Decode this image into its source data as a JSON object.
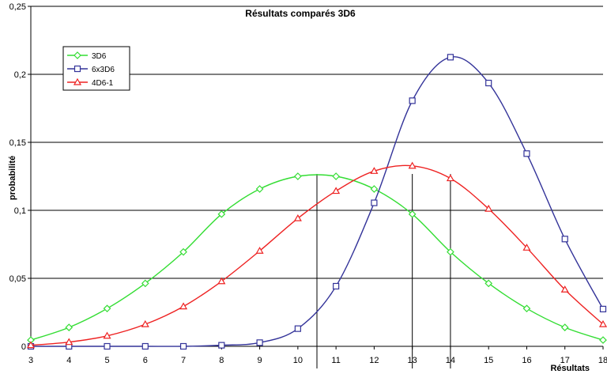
{
  "chart_data": {
    "type": "line",
    "title": "Résultats comparés 3D6",
    "xlabel": "Résultats",
    "ylabel": "probabilité",
    "x": [
      3,
      4,
      5,
      6,
      7,
      8,
      9,
      10,
      11,
      12,
      13,
      14,
      15,
      16,
      17,
      18
    ],
    "xticks": [
      "3",
      "4",
      "5",
      "6",
      "7",
      "8",
      "9",
      "10",
      "11",
      "12",
      "13",
      "14",
      "15",
      "16",
      "17",
      "18"
    ],
    "xlim": [
      3,
      18
    ],
    "ylim": [
      0,
      0.25
    ],
    "yticks": [
      0,
      0.05,
      0.1,
      0.15,
      0.2,
      0.25
    ],
    "yticklabels": [
      "0",
      "0,05",
      "0,1",
      "0,15",
      "0,2",
      "0,25"
    ],
    "grid": "horizontal",
    "legend_position": "top-left",
    "reference_lines_x": [
      10.5,
      13,
      14
    ],
    "series": [
      {
        "name": "3D6",
        "color": "#33dd33",
        "marker": "diamond",
        "values": [
          0.0046,
          0.0139,
          0.0278,
          0.0463,
          0.0694,
          0.0972,
          0.1157,
          0.125,
          0.125,
          0.1157,
          0.0972,
          0.0694,
          0.0463,
          0.0278,
          0.0139,
          0.0046
        ]
      },
      {
        "name": "6x3D6",
        "color": "#333399",
        "marker": "square",
        "values": [
          0,
          0,
          0,
          0,
          0,
          0.0008,
          0.0027,
          0.013,
          0.0442,
          0.1055,
          0.1806,
          0.2126,
          0.1936,
          0.1417,
          0.0789,
          0.0274
        ]
      },
      {
        "name": "4D6-1",
        "color": "#ee2222",
        "marker": "triangle",
        "values": [
          0.0008,
          0.0031,
          0.0077,
          0.0162,
          0.0293,
          0.0478,
          0.0702,
          0.0941,
          0.1142,
          0.1289,
          0.1327,
          0.1235,
          0.1011,
          0.0725,
          0.0417,
          0.0162
        ]
      }
    ]
  }
}
